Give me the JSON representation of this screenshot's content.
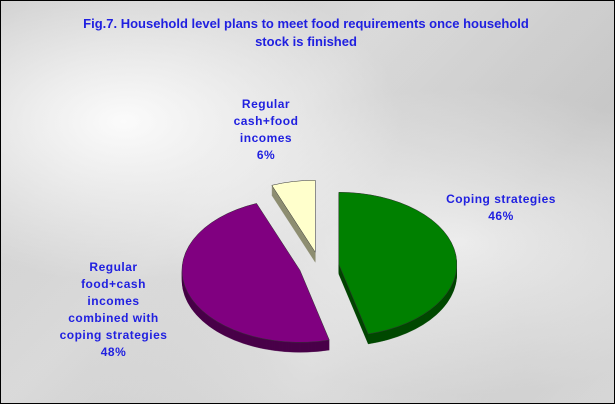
{
  "chart_data": {
    "type": "pie",
    "title": "Fig.7. Household level plans to meet food requirements once household stock is finished",
    "categories": [
      "Coping strategies",
      "Regular food+cash incomes combined with coping strategies",
      "Regular cash+food incomes"
    ],
    "values": [
      46,
      48,
      6
    ],
    "value_labels": [
      "46%",
      "48%",
      "6%"
    ],
    "colors": [
      "#008000",
      "#800080",
      "#ffffcc"
    ]
  }
}
